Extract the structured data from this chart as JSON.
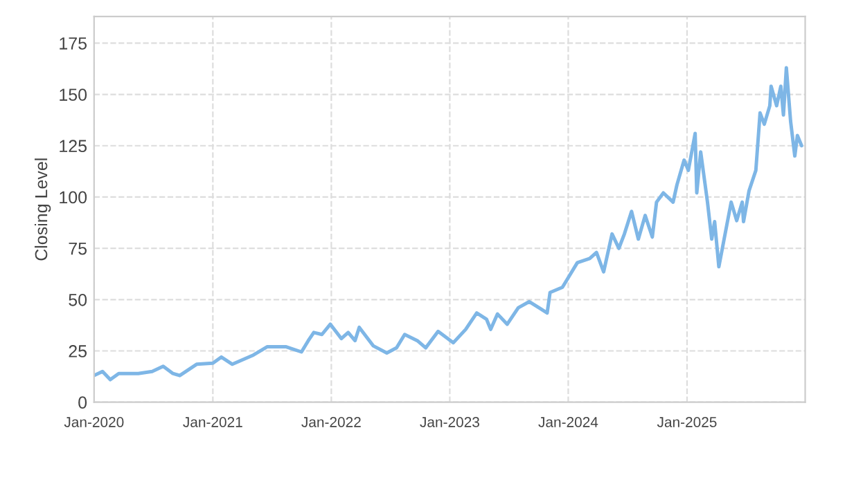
{
  "chart_data": {
    "type": "line",
    "ylabel": "Closing Level",
    "x": [
      "2020-01-01",
      "2020-01-27",
      "2020-02-20",
      "2020-03-17",
      "2020-05-16",
      "2020-06-28",
      "2020-08-01",
      "2020-08-31",
      "2020-09-21",
      "2020-11-12",
      "2021-01-01",
      "2021-01-27",
      "2021-03-02",
      "2021-05-06",
      "2021-06-17",
      "2021-08-15",
      "2021-10-01",
      "2021-10-22",
      "2021-11-08",
      "2021-12-03",
      "2021-12-29",
      "2022-02-01",
      "2022-02-22",
      "2022-03-15",
      "2022-03-28",
      "2022-05-10",
      "2022-06-21",
      "2022-07-21",
      "2022-08-15",
      "2022-09-23",
      "2022-10-19",
      "2022-11-26",
      "2023-01-12",
      "2023-02-19",
      "2023-03-25",
      "2023-04-24",
      "2023-05-07",
      "2023-05-28",
      "2023-06-27",
      "2023-07-31",
      "2023-09-03",
      "2023-10-03",
      "2023-10-28",
      "2023-11-06",
      "2023-12-14",
      "2024-01-04",
      "2024-01-29",
      "2024-03-07",
      "2024-03-28",
      "2024-04-19",
      "2024-05-15",
      "2024-06-05",
      "2024-06-22",
      "2024-07-14",
      "2024-08-04",
      "2024-08-25",
      "2024-09-16",
      "2024-09-29",
      "2024-10-20",
      "2024-11-19",
      "2024-12-01",
      "2024-12-23",
      "2025-01-05",
      "2025-01-26",
      "2025-01-31",
      "2025-02-12",
      "2025-03-05",
      "2025-03-18",
      "2025-03-27",
      "2025-04-09",
      "2025-04-21",
      "2025-05-17",
      "2025-06-03",
      "2025-06-20",
      "2025-06-24",
      "2025-07-11",
      "2025-08-01",
      "2025-08-14",
      "2025-08-27",
      "2025-09-13",
      "2025-09-17",
      "2025-10-04",
      "2025-10-17",
      "2025-10-25",
      "2025-11-03",
      "2025-11-16",
      "2025-11-29",
      "2025-12-07",
      "2025-12-20"
    ],
    "series": [
      {
        "color": "#7eb6e6",
        "values": [
          13,
          15,
          11,
          14,
          14,
          15,
          17.5,
          14,
          13,
          18.5,
          19,
          22,
          18.5,
          23,
          27,
          27,
          24.5,
          30,
          34,
          33,
          38,
          31,
          34,
          30,
          36.5,
          27.5,
          24,
          26.5,
          33,
          30,
          26.5,
          34.5,
          29,
          35.5,
          43.5,
          40.5,
          35.5,
          43,
          38,
          46,
          49,
          46,
          43.5,
          53.5,
          56,
          61.5,
          68,
          70,
          73,
          63.5,
          82,
          75,
          82,
          93,
          79.5,
          91,
          80.5,
          97.5,
          102,
          97.5,
          106,
          118,
          113,
          131,
          102,
          122,
          97.5,
          79.5,
          88,
          66,
          76,
          97.5,
          88.5,
          97.5,
          88,
          103,
          113,
          141,
          135.5,
          144.5,
          154,
          144.5,
          154,
          140,
          163,
          137,
          120,
          130,
          125
        ]
      }
    ],
    "xlim": [
      "2020-01-01",
      "2025-12-31"
    ],
    "xticks": [
      {
        "value": "2020-01-01",
        "label": "Jan-2020"
      },
      {
        "value": "2021-01-01",
        "label": "Jan-2021"
      },
      {
        "value": "2022-01-01",
        "label": "Jan-2022"
      },
      {
        "value": "2023-01-01",
        "label": "Jan-2023"
      },
      {
        "value": "2024-01-01",
        "label": "Jan-2024"
      },
      {
        "value": "2025-01-01",
        "label": "Jan-2025"
      }
    ],
    "ylim": [
      0,
      188
    ],
    "yticks": [
      0,
      25,
      50,
      75,
      100,
      125,
      150,
      175
    ],
    "grid": true,
    "line_style": "solid",
    "marker": "none"
  }
}
